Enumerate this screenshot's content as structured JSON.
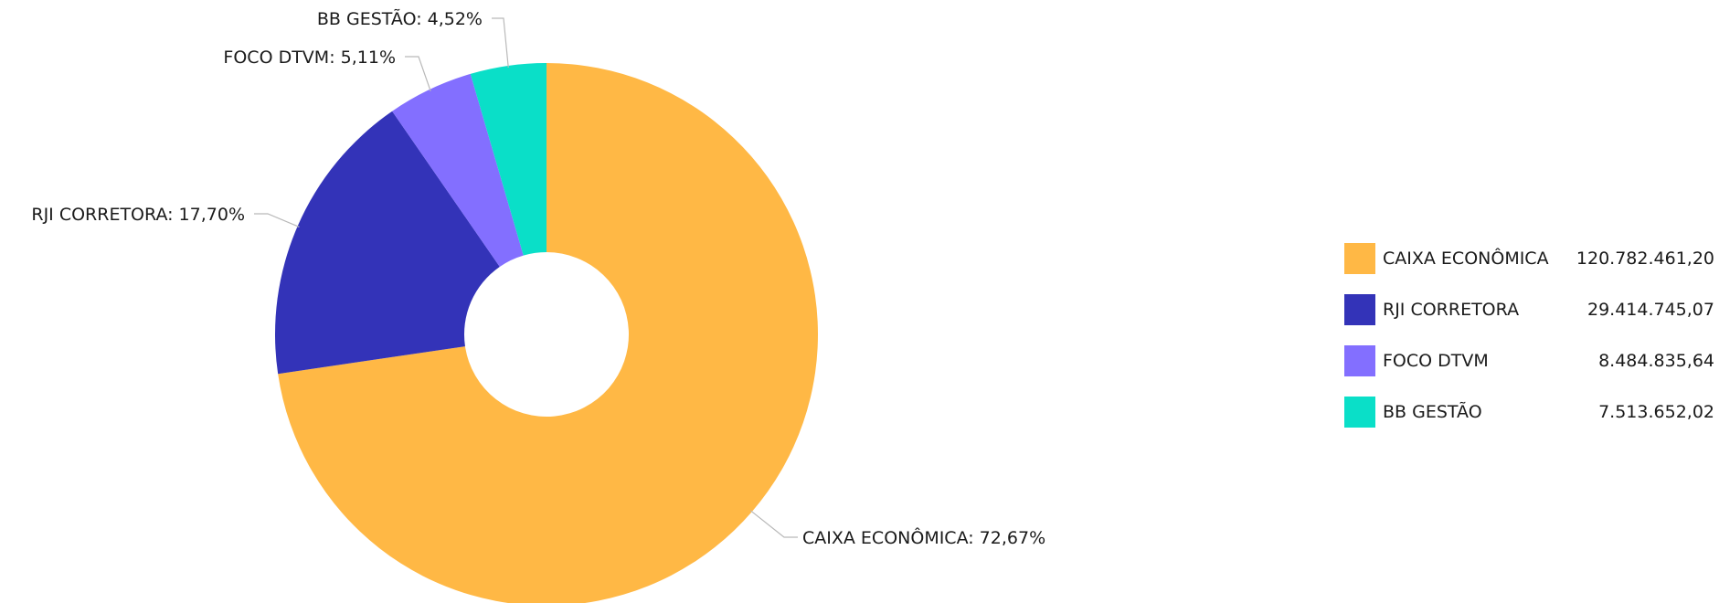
{
  "chart_data": {
    "type": "pie",
    "donut": true,
    "legend_position": "right",
    "slices": [
      {
        "name": "CAIXA ECONÔMICA",
        "value": 120782461.2,
        "value_label": "120.782.461,20",
        "percent": 72.67,
        "percent_label": "72,67%",
        "color": "#FFB845"
      },
      {
        "name": "RJI CORRETORA",
        "value": 29414745.07,
        "value_label": "29.414.745,07",
        "percent": 17.7,
        "percent_label": "17,70%",
        "color": "#3333B8"
      },
      {
        "name": "FOCO DTVM",
        "value": 8484835.64,
        "value_label": "8.484.835,64",
        "percent": 5.11,
        "percent_label": "5,11%",
        "color": "#836FFF"
      },
      {
        "name": "BB GESTÃO",
        "value": 7513652.02,
        "value_label": "7.513.652,02",
        "percent": 4.52,
        "percent_label": "4,52%",
        "color": "#0ADFC8"
      }
    ]
  }
}
